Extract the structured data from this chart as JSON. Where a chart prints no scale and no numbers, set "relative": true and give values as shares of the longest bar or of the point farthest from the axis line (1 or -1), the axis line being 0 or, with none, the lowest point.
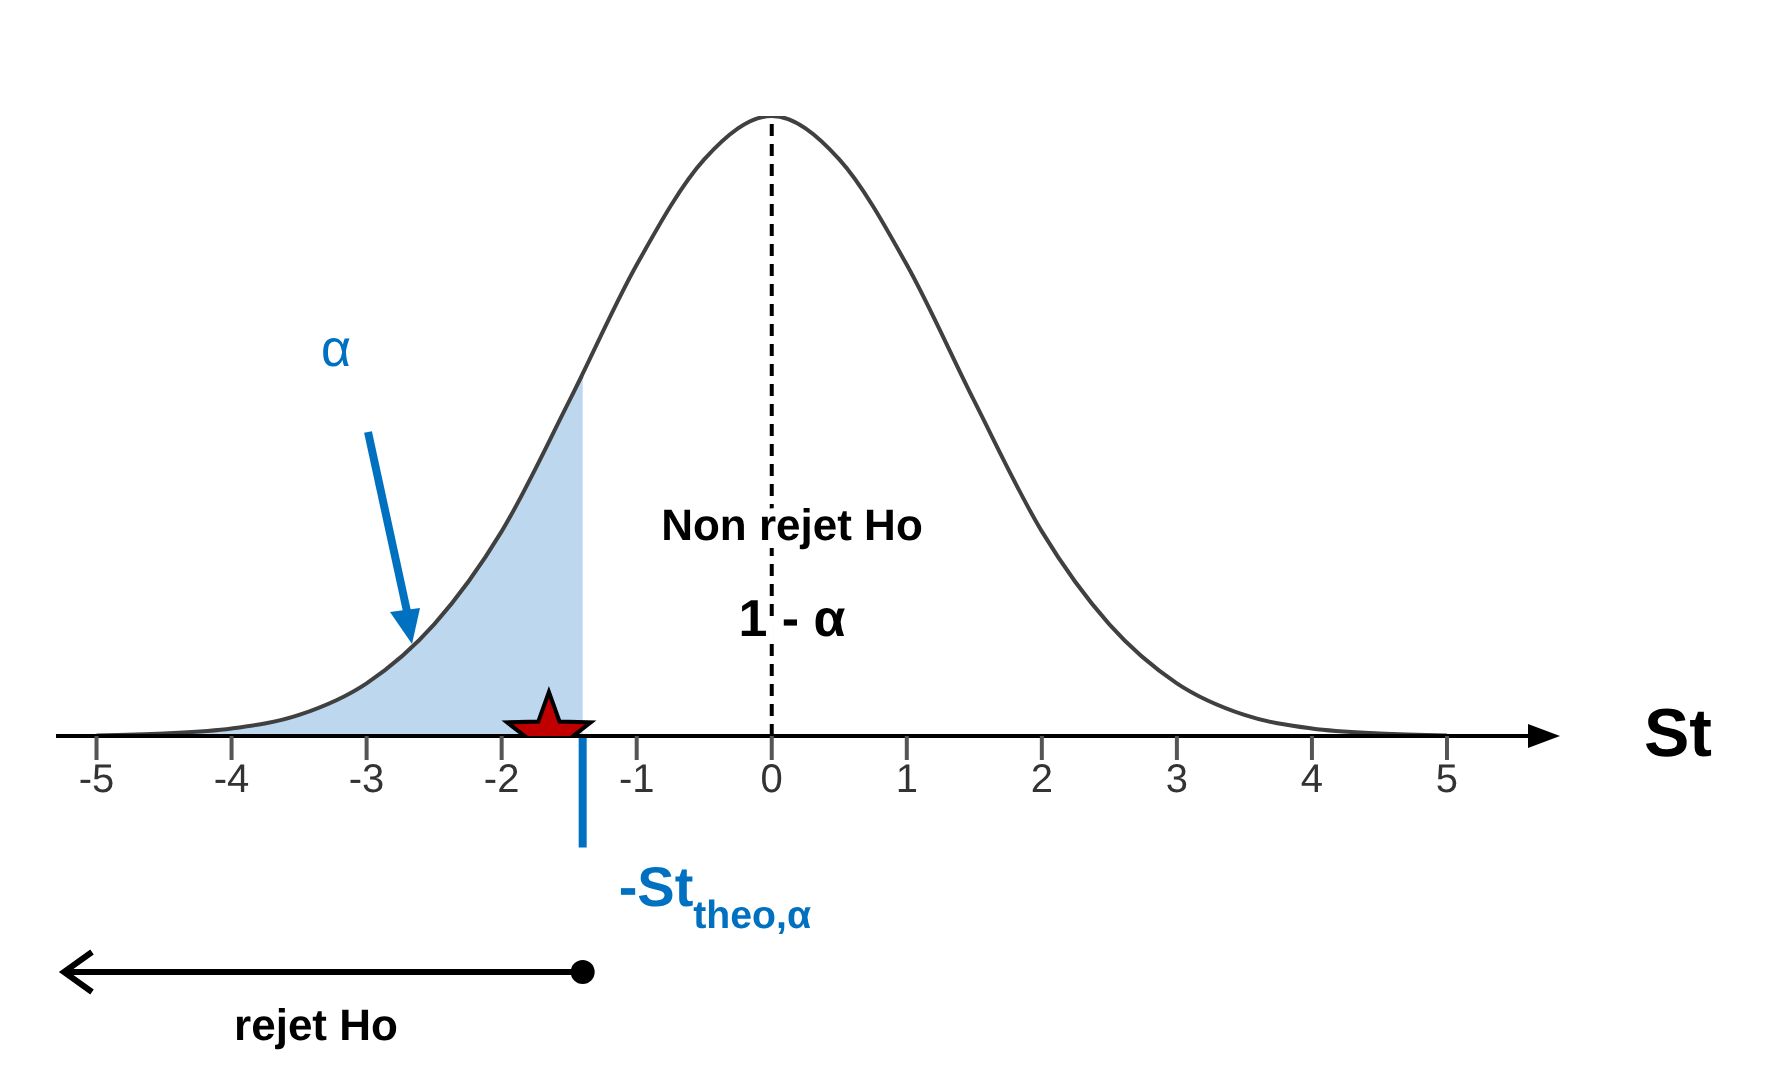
{
  "chart_data": {
    "type": "line",
    "relative": true,
    "xlabel": "St",
    "xlim": [
      -5.3,
      5.6
    ],
    "xticks": [
      -5,
      -4,
      -3,
      -2,
      -1,
      0,
      1,
      2,
      3,
      4,
      5
    ],
    "series": [
      {
        "color": "#404040",
        "marker": "none",
        "line_style": "solid",
        "x": [
          -5,
          -4.5,
          -4,
          -3.5,
          -3,
          -2.5,
          -2,
          -1.5,
          -1,
          -0.5,
          0,
          0.5,
          1,
          1.5,
          2,
          2.5,
          3,
          3.5,
          4,
          4.5,
          5
        ],
        "values": [
          0.001,
          0.004,
          0.012,
          0.034,
          0.085,
          0.18,
          0.33,
          0.54,
          0.76,
          0.93,
          1,
          0.93,
          0.76,
          0.54,
          0.33,
          0.18,
          0.085,
          0.034,
          0.012,
          0.004,
          0.001
        ]
      },
      {
        "type": "area",
        "color": "#bdd7ee",
        "x": [
          -5,
          -4.5,
          -4,
          -3.5,
          -3,
          -2.5,
          -2,
          -1.5,
          -1.4
        ],
        "values": [
          0.001,
          0.004,
          0.012,
          0.034,
          0.085,
          0.18,
          0.33,
          0.54,
          0.58
        ]
      },
      {
        "type": "scatter",
        "color": "#c00000",
        "marker": "star",
        "x": [
          -1.65
        ],
        "values": [
          0
        ]
      }
    ],
    "ref_lines": [
      {
        "axis": "x",
        "value": 0,
        "color": "#000000",
        "line_style": "dashed"
      },
      {
        "axis": "x",
        "value": -1.4,
        "label": "-St$_{theo,α}$",
        "color": "#0070c0"
      }
    ],
    "annotations": [
      "α",
      "Non rejet Ho",
      "1 - α",
      "rejet Ho"
    ]
  }
}
